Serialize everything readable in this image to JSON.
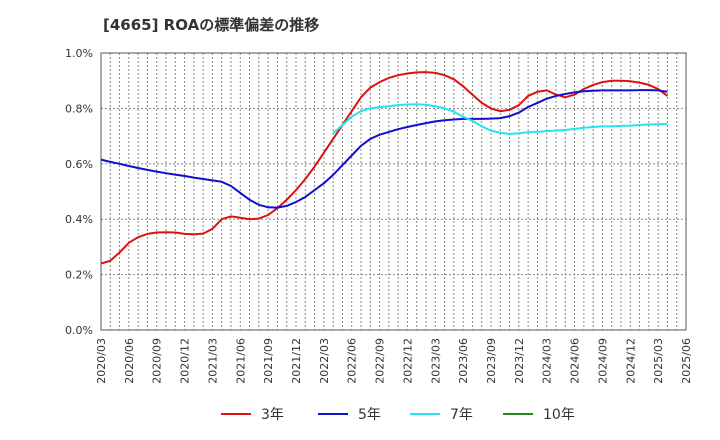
{
  "title": "[4665]  ROAの標準偏差の推移",
  "chart_data": {
    "type": "line",
    "ylim": [
      0,
      1.0
    ],
    "y_ticks": [
      "0.0%",
      "0.2%",
      "0.4%",
      "0.6%",
      "0.8%",
      "1.0%"
    ],
    "x_ticks": [
      "2020/03",
      "2020/06",
      "2020/09",
      "2020/12",
      "2021/03",
      "2021/06",
      "2021/09",
      "2021/12",
      "2022/03",
      "2022/06",
      "2022/09",
      "2022/12",
      "2023/03",
      "2023/06",
      "2023/09",
      "2023/12",
      "2024/03",
      "2024/06",
      "2024/09",
      "2024/12",
      "2025/03",
      "2025/06"
    ],
    "grid": true,
    "legend_position": "bottom",
    "series": [
      {
        "name": "3年",
        "color": "#dd1111",
        "values": [
          0.24,
          0.25,
          0.28,
          0.315,
          0.335,
          0.347,
          0.352,
          0.353,
          0.352,
          0.347,
          0.345,
          0.348,
          0.365,
          0.4,
          0.41,
          0.405,
          0.4,
          0.402,
          0.415,
          0.44,
          0.47,
          0.505,
          0.545,
          0.59,
          0.64,
          0.69,
          0.74,
          0.79,
          0.84,
          0.875,
          0.895,
          0.91,
          0.92,
          0.926,
          0.93,
          0.931,
          0.928,
          0.92,
          0.905,
          0.88,
          0.85,
          0.82,
          0.8,
          0.79,
          0.795,
          0.812,
          0.845,
          0.86,
          0.865,
          0.85,
          0.84,
          0.85,
          0.87,
          0.885,
          0.895,
          0.9,
          0.9,
          0.898,
          0.893,
          0.885,
          0.87,
          0.845
        ]
      },
      {
        "name": "5年",
        "color": "#1111cc",
        "values": [
          0.615,
          0.607,
          0.6,
          0.592,
          0.585,
          0.578,
          0.572,
          0.566,
          0.561,
          0.556,
          0.55,
          0.545,
          0.54,
          0.535,
          0.52,
          0.495,
          0.47,
          0.452,
          0.443,
          0.442,
          0.448,
          0.462,
          0.48,
          0.505,
          0.53,
          0.56,
          0.595,
          0.63,
          0.665,
          0.69,
          0.705,
          0.715,
          0.725,
          0.733,
          0.74,
          0.747,
          0.753,
          0.757,
          0.76,
          0.762,
          0.762,
          0.762,
          0.763,
          0.765,
          0.772,
          0.785,
          0.805,
          0.82,
          0.835,
          0.845,
          0.852,
          0.858,
          0.862,
          0.864,
          0.865,
          0.865,
          0.865,
          0.865,
          0.866,
          0.866,
          0.865,
          0.86
        ]
      },
      {
        "name": "7年",
        "color": "#22e5ee",
        "values": [
          null,
          null,
          null,
          null,
          null,
          null,
          null,
          null,
          null,
          null,
          null,
          null,
          null,
          null,
          null,
          null,
          null,
          null,
          null,
          null,
          null,
          null,
          null,
          null,
          null,
          0.71,
          0.74,
          0.77,
          0.79,
          0.8,
          0.805,
          0.808,
          0.812,
          0.814,
          0.815,
          0.813,
          0.808,
          0.8,
          0.788,
          0.77,
          0.755,
          0.735,
          0.72,
          0.712,
          0.708,
          0.71,
          0.714,
          0.716,
          0.718,
          0.72,
          0.722,
          0.726,
          0.73,
          0.733,
          0.735,
          0.735,
          0.737,
          0.738,
          0.74,
          0.742,
          0.743,
          0.744
        ]
      },
      {
        "name": "10年",
        "color": "#228822",
        "values": []
      }
    ]
  }
}
